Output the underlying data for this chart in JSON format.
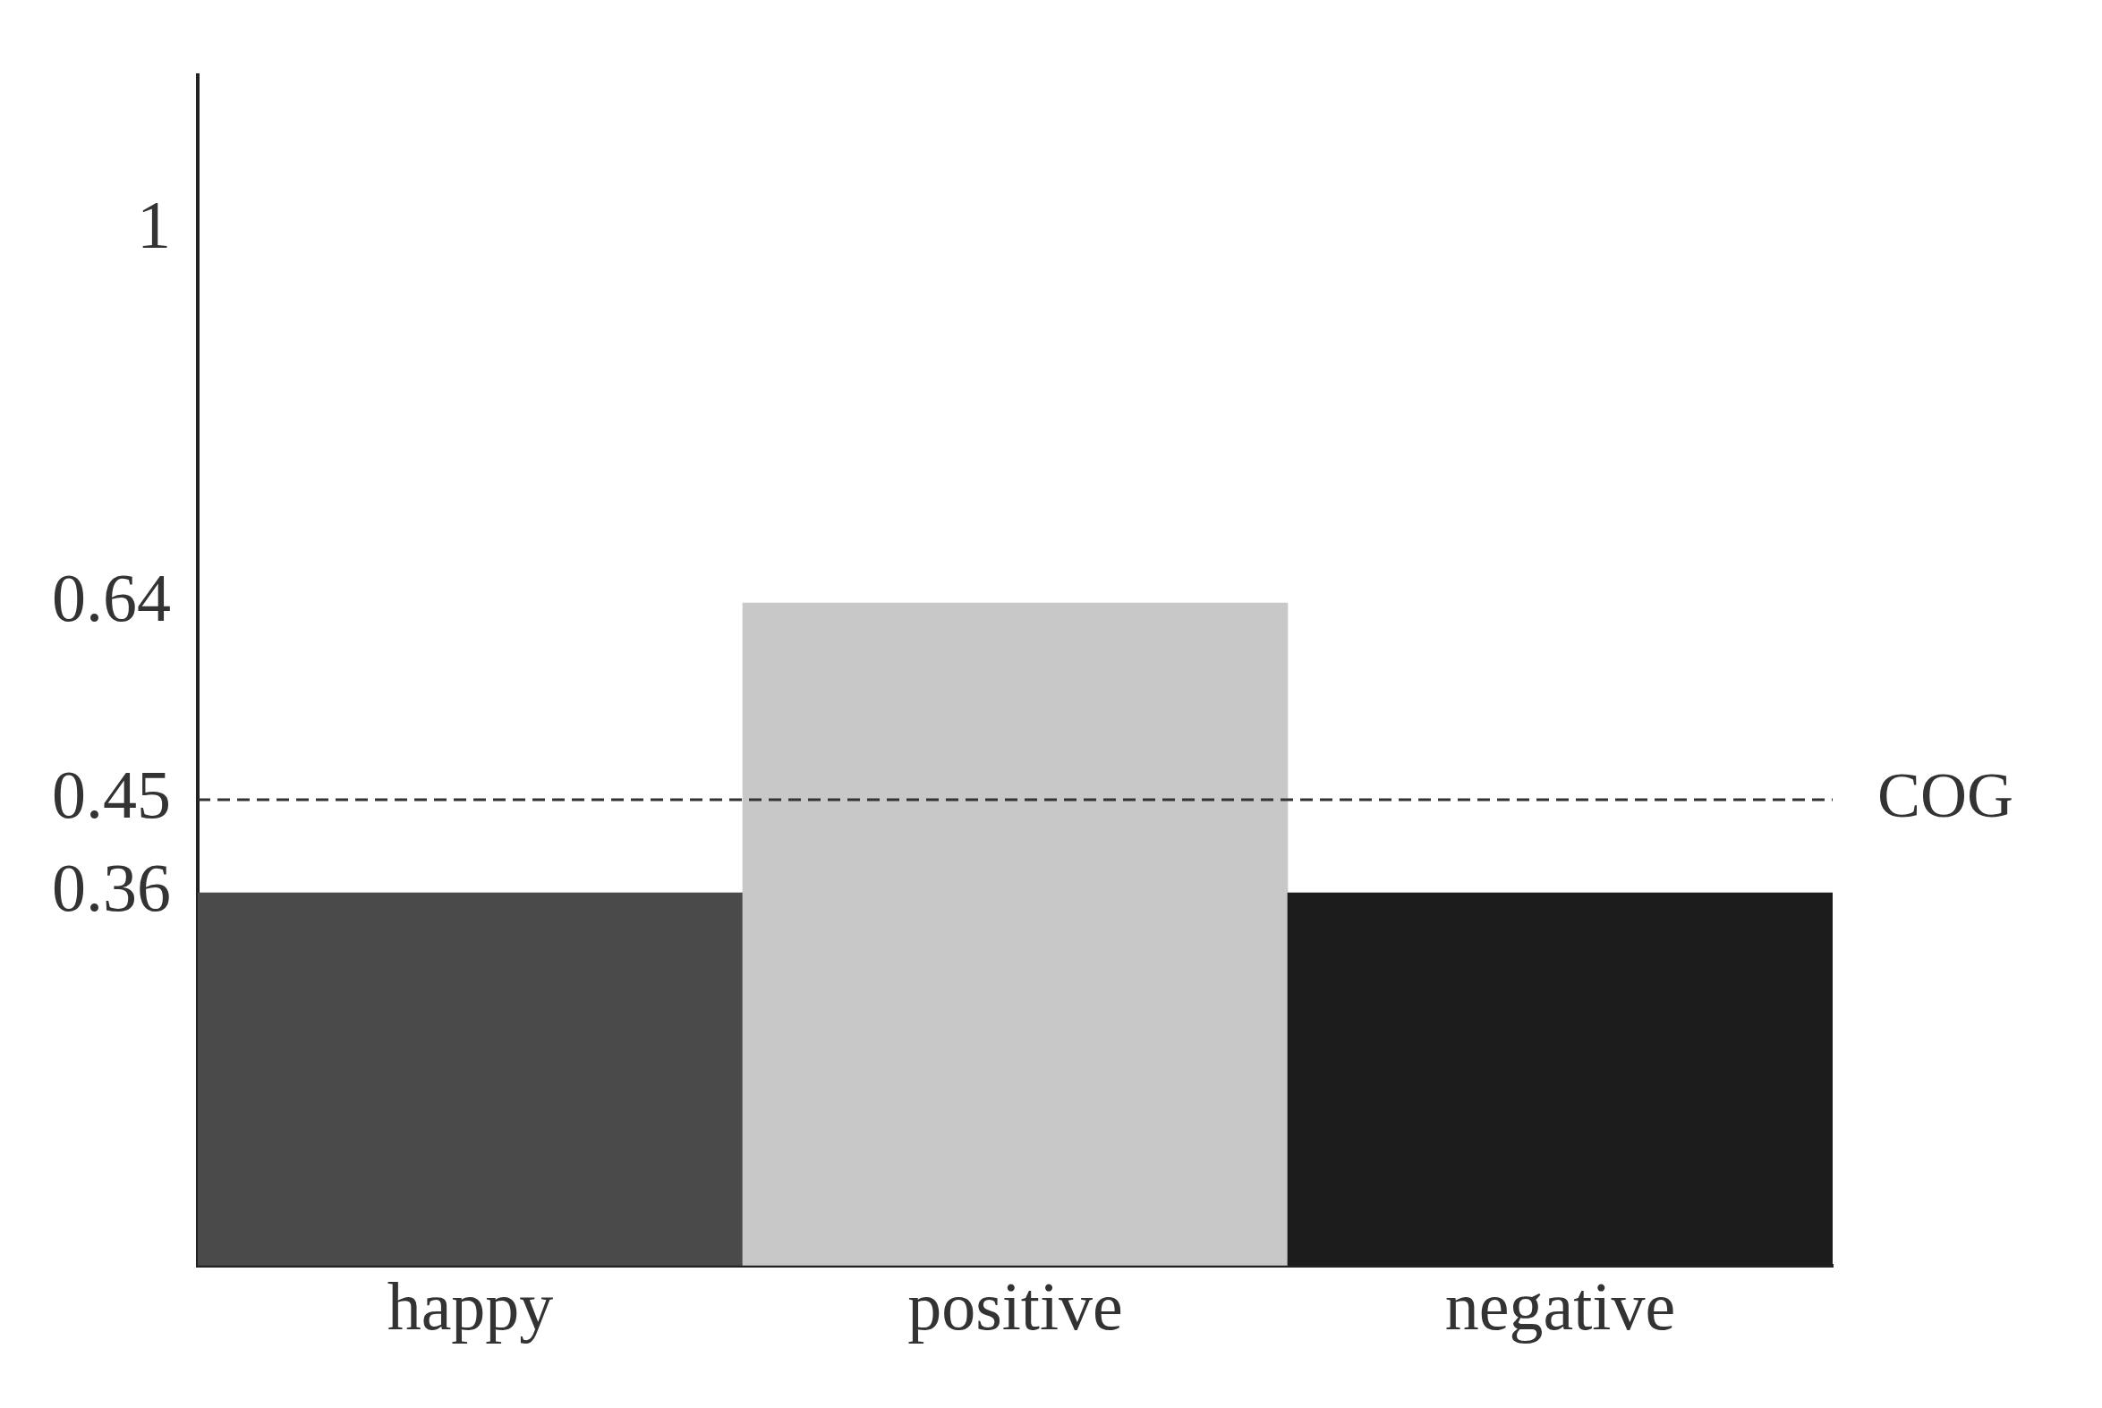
{
  "chart_data": {
    "type": "bar",
    "categories": [
      "happy",
      "positive",
      "negative"
    ],
    "values": [
      0.36,
      0.64,
      0.36
    ],
    "colors": [
      "#4a4a4a",
      "#c8c8c8",
      "#1c1c1c"
    ],
    "ylim": [
      0,
      1.15
    ],
    "yticks": [
      0.36,
      0.45,
      0.64,
      1
    ],
    "grid": false,
    "legend": false,
    "ref_lines": [
      {
        "axis": "y",
        "value": 0.45,
        "label": "COG",
        "line_style": "dashed",
        "color": "#333333"
      }
    ]
  }
}
